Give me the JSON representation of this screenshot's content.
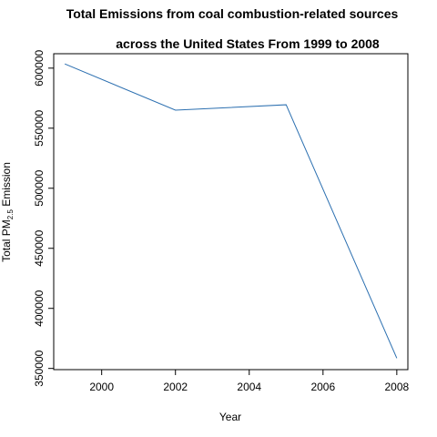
{
  "chart_data": {
    "type": "line",
    "title_line1": "Total Emissions from coal combustion-related sources",
    "title_line2": "across the United States From 1999 to 2008",
    "xlabel": "Year",
    "ylabel_prefix": "Total PM",
    "ylabel_sub": "2.5",
    "ylabel_suffix": " Emission",
    "x": [
      1999,
      2002,
      2005,
      2008
    ],
    "y": [
      603500,
      565000,
      569500,
      358500
    ],
    "xlim": [
      1998.7,
      2008.3
    ],
    "ylim": [
      349000,
      612000
    ],
    "xticks": [
      "2000",
      "2002",
      "2004",
      "2006",
      "2008"
    ],
    "yticks": [
      "350000",
      "400000",
      "450000",
      "500000",
      "550000",
      "600000"
    ],
    "line_color": "#2b6fb0",
    "grid": false,
    "legend": "none"
  }
}
